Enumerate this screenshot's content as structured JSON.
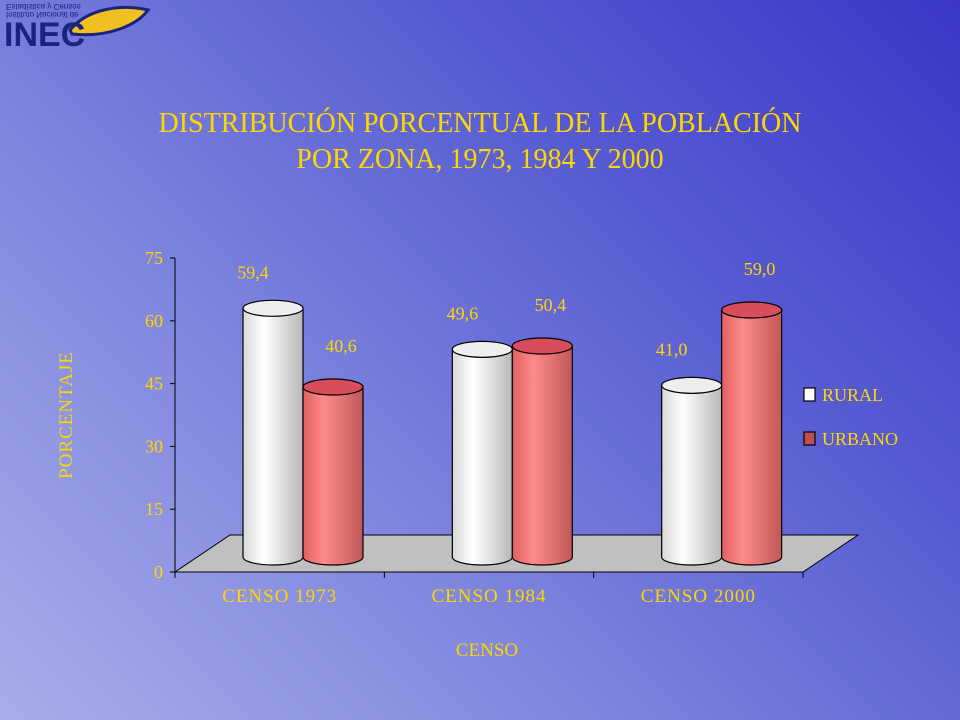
{
  "logo": {
    "text": "INEC",
    "subtitle_line1": "Instituto Nacional de",
    "subtitle_line2": "Estadística y Censos"
  },
  "colors": {
    "title": "#ffd700",
    "rural": "#ffffff",
    "urbano": "#ff7f7f",
    "floor": "#c0c0c0"
  },
  "chart_data": {
    "type": "bar",
    "title": "DISTRIBUCIÓN PORCENTUAL DE LA POBLACIÓN",
    "subtitle": "POR ZONA, 1973, 1984 Y 2000",
    "xlabel": "CENSO",
    "ylabel": "PORCENTAJE",
    "ylim": [
      0,
      75
    ],
    "yticks": [
      "0",
      "15",
      "30",
      "45",
      "60",
      "75"
    ],
    "categories": [
      "CENSO 1973",
      "CENSO 1984",
      "CENSO 2000"
    ],
    "series": [
      {
        "name": "RURAL",
        "values": [
          59.4,
          49.6,
          41.0
        ],
        "labels": [
          "59,4",
          "49,6",
          "41,0"
        ]
      },
      {
        "name": "URBANO",
        "values": [
          40.6,
          50.4,
          59.0
        ],
        "labels": [
          "40,6",
          "50,4",
          "59,0"
        ]
      }
    ],
    "legend_position": "right",
    "style": "3d-cylinder"
  }
}
